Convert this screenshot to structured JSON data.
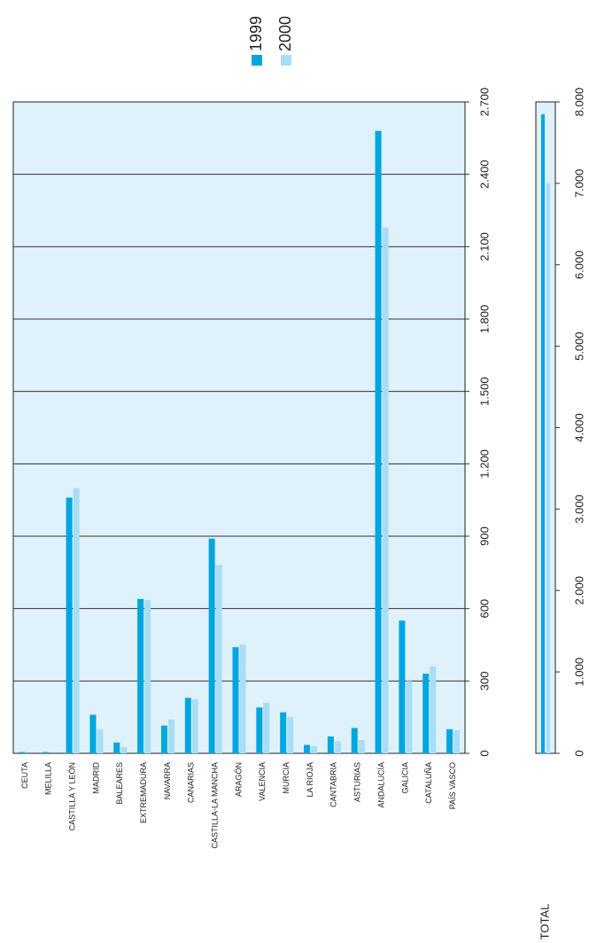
{
  "chart_data": [
    {
      "type": "bar",
      "categories": [
        "CEUTA",
        "MELILLA",
        "CASTILLA Y LEÓN",
        "MADRID",
        "BALEARES",
        "EXTREMADURA",
        "NAVARRA",
        "CANARIAS",
        "CASTILLA-LA MANCHA",
        "ARAGÓN",
        "VALENCIA",
        "MURCIA",
        "LA RIOJA",
        "CANTABRIA",
        "ASTURIAS",
        "ANDALUCÍA",
        "GALICIA",
        "CATALUÑA",
        "PAÍS VASCO"
      ],
      "series": [
        {
          "name": "1999",
          "color": "#00a6e0",
          "values": [
            5,
            5,
            1060,
            160,
            45,
            640,
            115,
            230,
            890,
            440,
            190,
            170,
            35,
            70,
            105,
            2580,
            550,
            330,
            100
          ]
        },
        {
          "name": "2000",
          "color": "#a8def5",
          "values": [
            0,
            0,
            1100,
            100,
            25,
            635,
            140,
            225,
            780,
            450,
            210,
            150,
            30,
            50,
            55,
            2180,
            300,
            360,
            95
          ]
        }
      ],
      "ylim": [
        0,
        2700
      ],
      "yticks": [
        0,
        300,
        600,
        900,
        {
          "value": 1200,
          "label": "1.200"
        },
        {
          "value": 1500,
          "label": "1.500"
        },
        {
          "value": 1800,
          "label": "1.800"
        },
        {
          "value": 2100,
          "label": "2.100"
        },
        {
          "value": 2400,
          "label": "2.400"
        },
        {
          "value": 2700,
          "label": "2.700"
        }
      ],
      "grid": true,
      "background": "#dff1fa"
    },
    {
      "type": "bar",
      "categories": [
        "TOTAL"
      ],
      "series": [
        {
          "color": "#00a6e0",
          "values": [
            7850
          ]
        },
        {
          "color": "#a8def5",
          "values": [
            7000
          ]
        }
      ],
      "ylim": [
        0,
        8000
      ],
      "yticks": [
        0,
        {
          "value": 1000,
          "label": "1.000"
        },
        {
          "value": 2000,
          "label": "2.000"
        },
        {
          "value": 3000,
          "label": "3.000"
        },
        {
          "value": 4000,
          "label": "4.000"
        },
        {
          "value": 5000,
          "label": "5.000"
        },
        {
          "value": 6000,
          "label": "6.000"
        },
        {
          "value": 7000,
          "label": "7.000"
        },
        {
          "value": 8000,
          "label": "8.000"
        }
      ],
      "grid": false,
      "background": "#dff1fa"
    }
  ]
}
